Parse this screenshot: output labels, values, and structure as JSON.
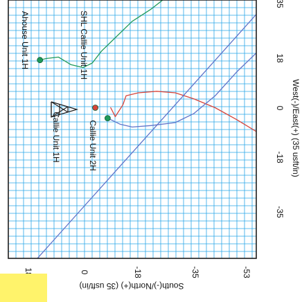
{
  "chart_data": {
    "type": "line",
    "title": "",
    "xlabel": "South(-)/North(+) (35 usft/in)",
    "ylabel": "West(-)/East(+) (35 usft/in)",
    "x_ticks": [
      "18",
      "0",
      "-18",
      "-35",
      "-53"
    ],
    "y_ticks": [
      "35",
      "18",
      "0",
      "-18",
      "-35"
    ],
    "annotations": [
      "Ahouse Unit 1H",
      "SHL Callie Unit 1H",
      "Callie Unit 1H",
      "Callie Unit 2H"
    ],
    "colors": {
      "grid": "#2aa6e8",
      "green_well": "#1f9a5a",
      "red_well": "#d7443a",
      "blue_well": "#5f73c9",
      "border": "#1d1d1d",
      "highlight": "#fff36b"
    },
    "series": [
      {
        "color": "green_well",
        "points": [
          [
            14,
            16
          ],
          [
            12,
            16.5
          ],
          [
            8,
            17
          ],
          [
            4,
            14.5
          ],
          [
            0,
            13.5
          ],
          [
            -3,
            15
          ],
          [
            -6,
            19
          ],
          [
            -10,
            23
          ],
          [
            -16,
            29
          ],
          [
            -22,
            33
          ],
          [
            -27,
            37
          ]
        ]
      },
      {
        "color": "red_well",
        "points": [
          [
            -9,
            0
          ],
          [
            -10,
            -2
          ],
          [
            -10.5,
            -3
          ],
          [
            -13,
            1
          ],
          [
            -14,
            4
          ],
          [
            -18,
            5
          ],
          [
            -24,
            5.5
          ],
          [
            -30,
            5
          ],
          [
            -36,
            3
          ],
          [
            -43,
            0
          ],
          [
            -50,
            -4
          ],
          [
            -58,
            -9
          ],
          [
            -63,
            -13
          ]
        ]
      },
      {
        "color": "blue_well",
        "points": [
          [
            -8,
            -3.5
          ],
          [
            -9,
            -4
          ],
          [
            -12,
            -5.5
          ],
          [
            -16,
            -6.5
          ],
          [
            -22,
            -6
          ],
          [
            -30,
            -5
          ],
          [
            -36,
            -2
          ],
          [
            -43,
            4
          ],
          [
            -50,
            12
          ],
          [
            -58,
            20
          ],
          [
            -63,
            25
          ]
        ]
      },
      {
        "color": "blue_well",
        "points": [
          [
            30,
            -68
          ],
          [
            10,
            -45
          ],
          [
            -10,
            -22
          ],
          [
            -30,
            1
          ],
          [
            -50,
            24
          ],
          [
            -63,
            39
          ]
        ]
      }
    ],
    "markers": [
      {
        "x": 14,
        "y": 16,
        "color": "green_well"
      },
      {
        "x": -8,
        "y": -3.5,
        "color": "green_well"
      },
      {
        "x": -4,
        "y": 0,
        "color": "red_well"
      }
    ],
    "xlim": [
      30,
      -63
    ],
    "ylim": [
      -45,
      40
    ],
    "grid": true,
    "legend": false
  }
}
